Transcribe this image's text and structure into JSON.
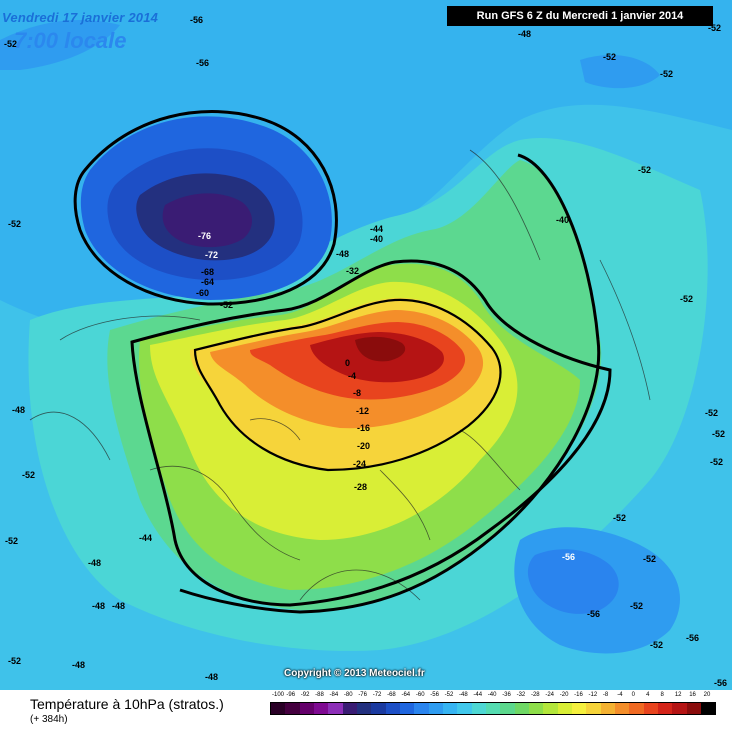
{
  "header": {
    "valid_date": "Vendredi 17 janvier 2014",
    "local_time": "7:00 locale",
    "run_info": "Run GFS 6 Z du Mercredi 1 janvier 2014"
  },
  "map": {
    "copyright": "Copyright © 2013 Meteociel.fr",
    "contour_labels": [
      "-56",
      "-48",
      "-56",
      "-52",
      "-52",
      "-52",
      "-52",
      "-52",
      "-76",
      "-72",
      "-68",
      "-64",
      "-60",
      "-52",
      "-48",
      "-44",
      "-40",
      "-32",
      "-40",
      "-52",
      "-52",
      "-52",
      "-52",
      "-52",
      "0",
      "-4",
      "-8",
      "-12",
      "-16",
      "-20",
      "-24",
      "-28",
      "-48",
      "-44",
      "-48",
      "-48",
      "-52",
      "-52",
      "-52",
      "-56",
      "-52",
      "-56",
      "-52",
      "-56",
      "-48",
      "-48",
      "-52",
      "-52",
      "-56",
      "-48"
    ]
  },
  "footer": {
    "parameter": "Température à 10hPa (stratos.)",
    "lead_time": "(+ 384h)"
  },
  "legend": {
    "ticks": [
      "-100",
      "-96",
      "-92",
      "-88",
      "-84",
      "-80",
      "-76",
      "-72",
      "-68",
      "-64",
      "-60",
      "-56",
      "-52",
      "-48",
      "-44",
      "-40",
      "-36",
      "-32",
      "-28",
      "-24",
      "-20",
      "-16",
      "-12",
      "-8",
      "-4",
      "0",
      "4",
      "8",
      "12",
      "16",
      "20"
    ],
    "colors": [
      "#2a0026",
      "#45003f",
      "#65006b",
      "#7f0a92",
      "#8d2fb8",
      "#3a1c74",
      "#23307f",
      "#1b3aa0",
      "#1d4fc6",
      "#1f66df",
      "#2a84ee",
      "#2f9cf0",
      "#36b4f2",
      "#41c8ec",
      "#4ed8d4",
      "#55dcb1",
      "#5cd88d",
      "#6fd865",
      "#8ede4a",
      "#b3e63b",
      "#d9ee36",
      "#f5f03e",
      "#f6d43a",
      "#f4b232",
      "#f48e2a",
      "#f06a23",
      "#e8441e",
      "#d42419",
      "#b51414",
      "#8a0c0c",
      "#000000"
    ]
  }
}
